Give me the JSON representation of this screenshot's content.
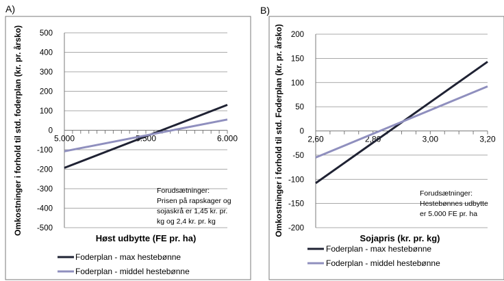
{
  "chart_data": [
    {
      "panel_label": "A)",
      "type": "line",
      "title": "",
      "xlabel": "Høst udbytte (FE pr. ha)",
      "ylabel": "Omkostninger i forhold til std. foderplan (kr. pr. årsko)",
      "xlim": [
        5000,
        6000
      ],
      "ylim": [
        -500,
        500
      ],
      "x_ticks": [
        "5.000",
        "5.500",
        "6.000"
      ],
      "y_ticks": [
        "-500",
        "-400",
        "-300",
        "-200",
        "-100",
        "0",
        "100",
        "200",
        "300",
        "400",
        "500"
      ],
      "grid": "horizontal",
      "legend_position": "bottom",
      "series": [
        {
          "name": "Foderplan - max hestebønne",
          "color": "#1f2233",
          "x": [
            5000,
            6000
          ],
          "y": [
            -193,
            130
          ]
        },
        {
          "name": "Foderplan - middel hestebønne",
          "color": "#8f8fbe",
          "x": [
            5000,
            6000
          ],
          "y": [
            -108,
            55
          ]
        }
      ],
      "annotation": [
        "Forudsætninger:",
        "Prisen på rapskager og",
        "sojaskrå  er 1,45 kr. pr.",
        "kg og 2,4 kr. pr. kg"
      ]
    },
    {
      "panel_label": "B)",
      "type": "line",
      "title": "",
      "xlabel": "Sojapris (kr. pr. kg)",
      "ylabel": "Omkostninger i forhold til std. Foderplan (kr. pr. årsko)",
      "xlim": [
        2.6,
        3.2
      ],
      "ylim": [
        -200,
        200
      ],
      "x_ticks": [
        "2,60",
        "2,80",
        "3,00",
        "3,20"
      ],
      "y_ticks": [
        "-200",
        "-150",
        "-100",
        "-50",
        "0",
        "50",
        "100",
        "150",
        "200"
      ],
      "grid": "horizontal",
      "legend_position": "bottom",
      "series": [
        {
          "name": "Foderplan - max hestebønne",
          "color": "#1f2233",
          "x": [
            2.6,
            3.2
          ],
          "y": [
            -108,
            143
          ]
        },
        {
          "name": "Foderplan - middel hestebønne",
          "color": "#8f8fbe",
          "x": [
            2.6,
            3.2
          ],
          "y": [
            -55,
            92
          ]
        }
      ],
      "annotation": [
        "Forudsætninger:",
        "Hestebønnes udbytte",
        "er 5.000 FE pr. ha"
      ]
    }
  ]
}
